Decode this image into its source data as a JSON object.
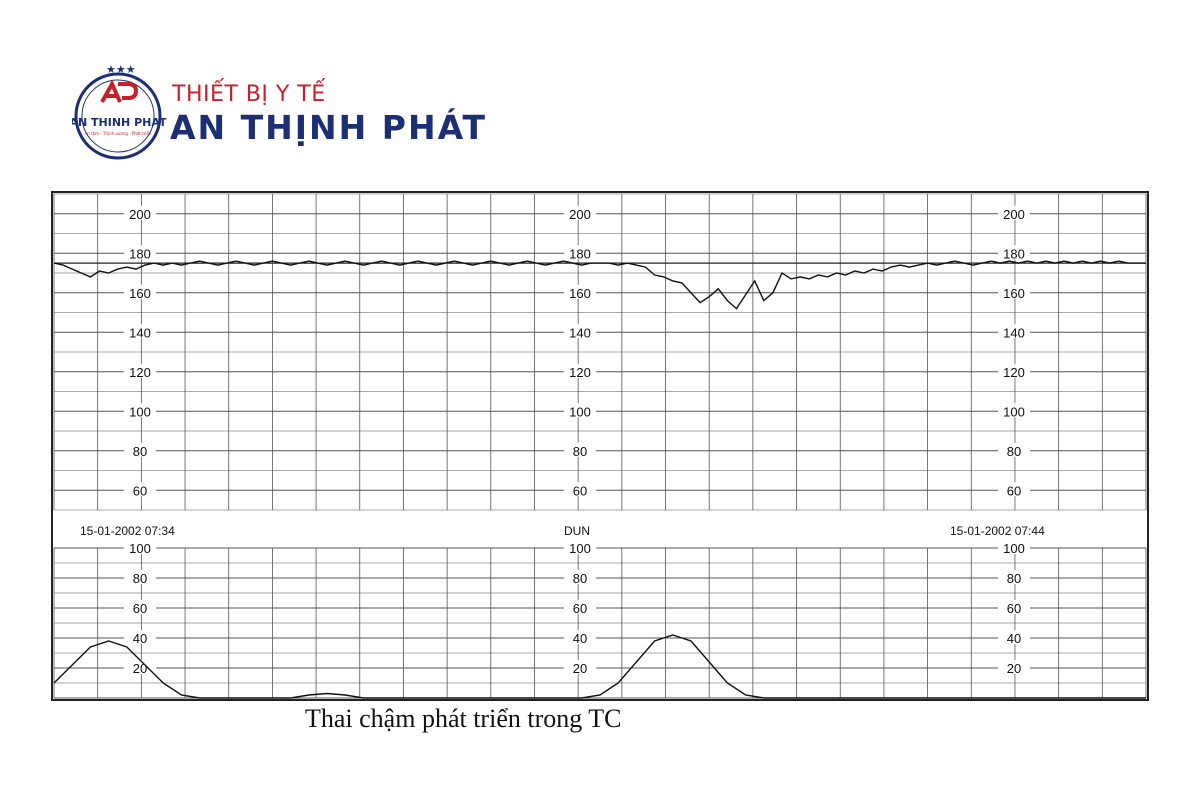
{
  "brand": {
    "line1": "THIẾT BỊ Y TẾ",
    "line2": "AN THỊNH PHÁT",
    "seal_text": "AN THINH PHAT",
    "seal_tagline": "An tâm - Thịnh vượng - Phát triển",
    "colors": {
      "navy": "#1c2f74",
      "red": "#c8202a"
    }
  },
  "caption": "Thai chậm phát triển trong TC",
  "chart_data": {
    "type": "line",
    "timestamps": {
      "left": "15-01-2002 07:34",
      "middle": "DUN",
      "right": "15-01-2002 07:44"
    },
    "panels": [
      {
        "name": "fhr",
        "ylim": [
          50,
          210
        ],
        "tick_labels": [
          "200",
          "180",
          "160",
          "140",
          "120",
          "100",
          "80",
          "60"
        ],
        "tick_values": [
          200,
          180,
          160,
          140,
          120,
          100,
          80,
          60
        ],
        "grid": true,
        "baseline": 175,
        "series": [
          {
            "x": [
              0,
              5,
              10,
              15,
              20,
              25,
              30,
              35,
              40,
              45,
              50,
              55,
              60,
              65,
              70,
              75,
              80,
              85,
              90,
              95,
              100,
              105,
              110,
              115,
              120,
              125,
              130,
              135,
              140,
              145,
              150,
              155,
              160,
              165,
              170,
              175,
              180,
              185,
              190,
              195,
              200,
              205,
              210,
              215,
              220,
              225,
              230,
              235,
              240,
              245,
              250,
              255,
              260,
              265,
              270,
              275,
              280,
              285,
              290,
              295,
              300,
              305,
              310,
              315,
              320,
              325,
              330,
              335,
              340,
              345,
              350,
              355,
              360,
              365,
              370,
              375,
              380,
              385,
              390,
              395,
              400,
              405,
              410,
              415,
              420,
              425,
              430,
              435,
              440,
              445,
              450,
              455,
              460,
              465,
              470,
              475,
              480,
              485,
              490,
              495,
              500,
              505,
              510,
              515,
              520,
              525,
              530,
              535,
              540,
              545,
              550,
              555,
              560,
              565,
              570,
              575,
              580,
              585,
              590,
              595,
              600
            ],
            "y": [
              175,
              174,
              172,
              170,
              168,
              171,
              170,
              172,
              173,
              172,
              174,
              175,
              174,
              175,
              174,
              175,
              176,
              175,
              174,
              175,
              176,
              175,
              174,
              175,
              176,
              175,
              174,
              175,
              176,
              175,
              174,
              175,
              176,
              175,
              174,
              175,
              176,
              175,
              174,
              175,
              176,
              175,
              174,
              175,
              176,
              175,
              174,
              175,
              176,
              175,
              174,
              175,
              176,
              175,
              174,
              175,
              176,
              175,
              174,
              175,
              175,
              175,
              174,
              175,
              174,
              173,
              169,
              168,
              166,
              165,
              160,
              155,
              158,
              162,
              156,
              152,
              159,
              166,
              156,
              160,
              170,
              167,
              168,
              167,
              169,
              168,
              170,
              169,
              171,
              170,
              172,
              171,
              173,
              174,
              173,
              174,
              175,
              174,
              175,
              176,
              175,
              174,
              175,
              176,
              175,
              176,
              175,
              176,
              175,
              176,
              175,
              176,
              175,
              176,
              175,
              176,
              175,
              176,
              175,
              175,
              175
            ]
          }
        ]
      },
      {
        "name": "uc",
        "ylim": [
          0,
          100
        ],
        "tick_labels": [
          "100",
          "80",
          "60",
          "40",
          "20"
        ],
        "tick_values": [
          100,
          80,
          60,
          40,
          20
        ],
        "grid": true,
        "series": [
          {
            "x": [
              0,
              10,
              20,
              30,
              40,
              50,
              60,
              70,
              80,
              90,
              100,
              110,
              120,
              130,
              140,
              150,
              160,
              170,
              180,
              190,
              200,
              210,
              220,
              230,
              240,
              250,
              260,
              270,
              280,
              290,
              300,
              310,
              320,
              330,
              340,
              350,
              360,
              370,
              380,
              390,
              400,
              410,
              420,
              430,
              440,
              450,
              460,
              470,
              480,
              490,
              500,
              510,
              520,
              530,
              540,
              550,
              560,
              570,
              580,
              590,
              600
            ],
            "y": [
              10,
              22,
              34,
              38,
              34,
              22,
              10,
              2,
              0,
              0,
              0,
              0,
              0,
              0,
              2,
              3,
              2,
              0,
              0,
              0,
              0,
              0,
              0,
              0,
              0,
              0,
              0,
              0,
              0,
              0,
              2,
              10,
              24,
              38,
              42,
              38,
              24,
              10,
              2,
              0,
              0,
              0,
              0,
              0,
              0,
              0,
              0,
              0,
              0,
              0,
              0,
              0,
              0,
              0,
              0,
              0,
              0,
              0,
              0,
              0,
              0
            ]
          }
        ]
      }
    ]
  }
}
